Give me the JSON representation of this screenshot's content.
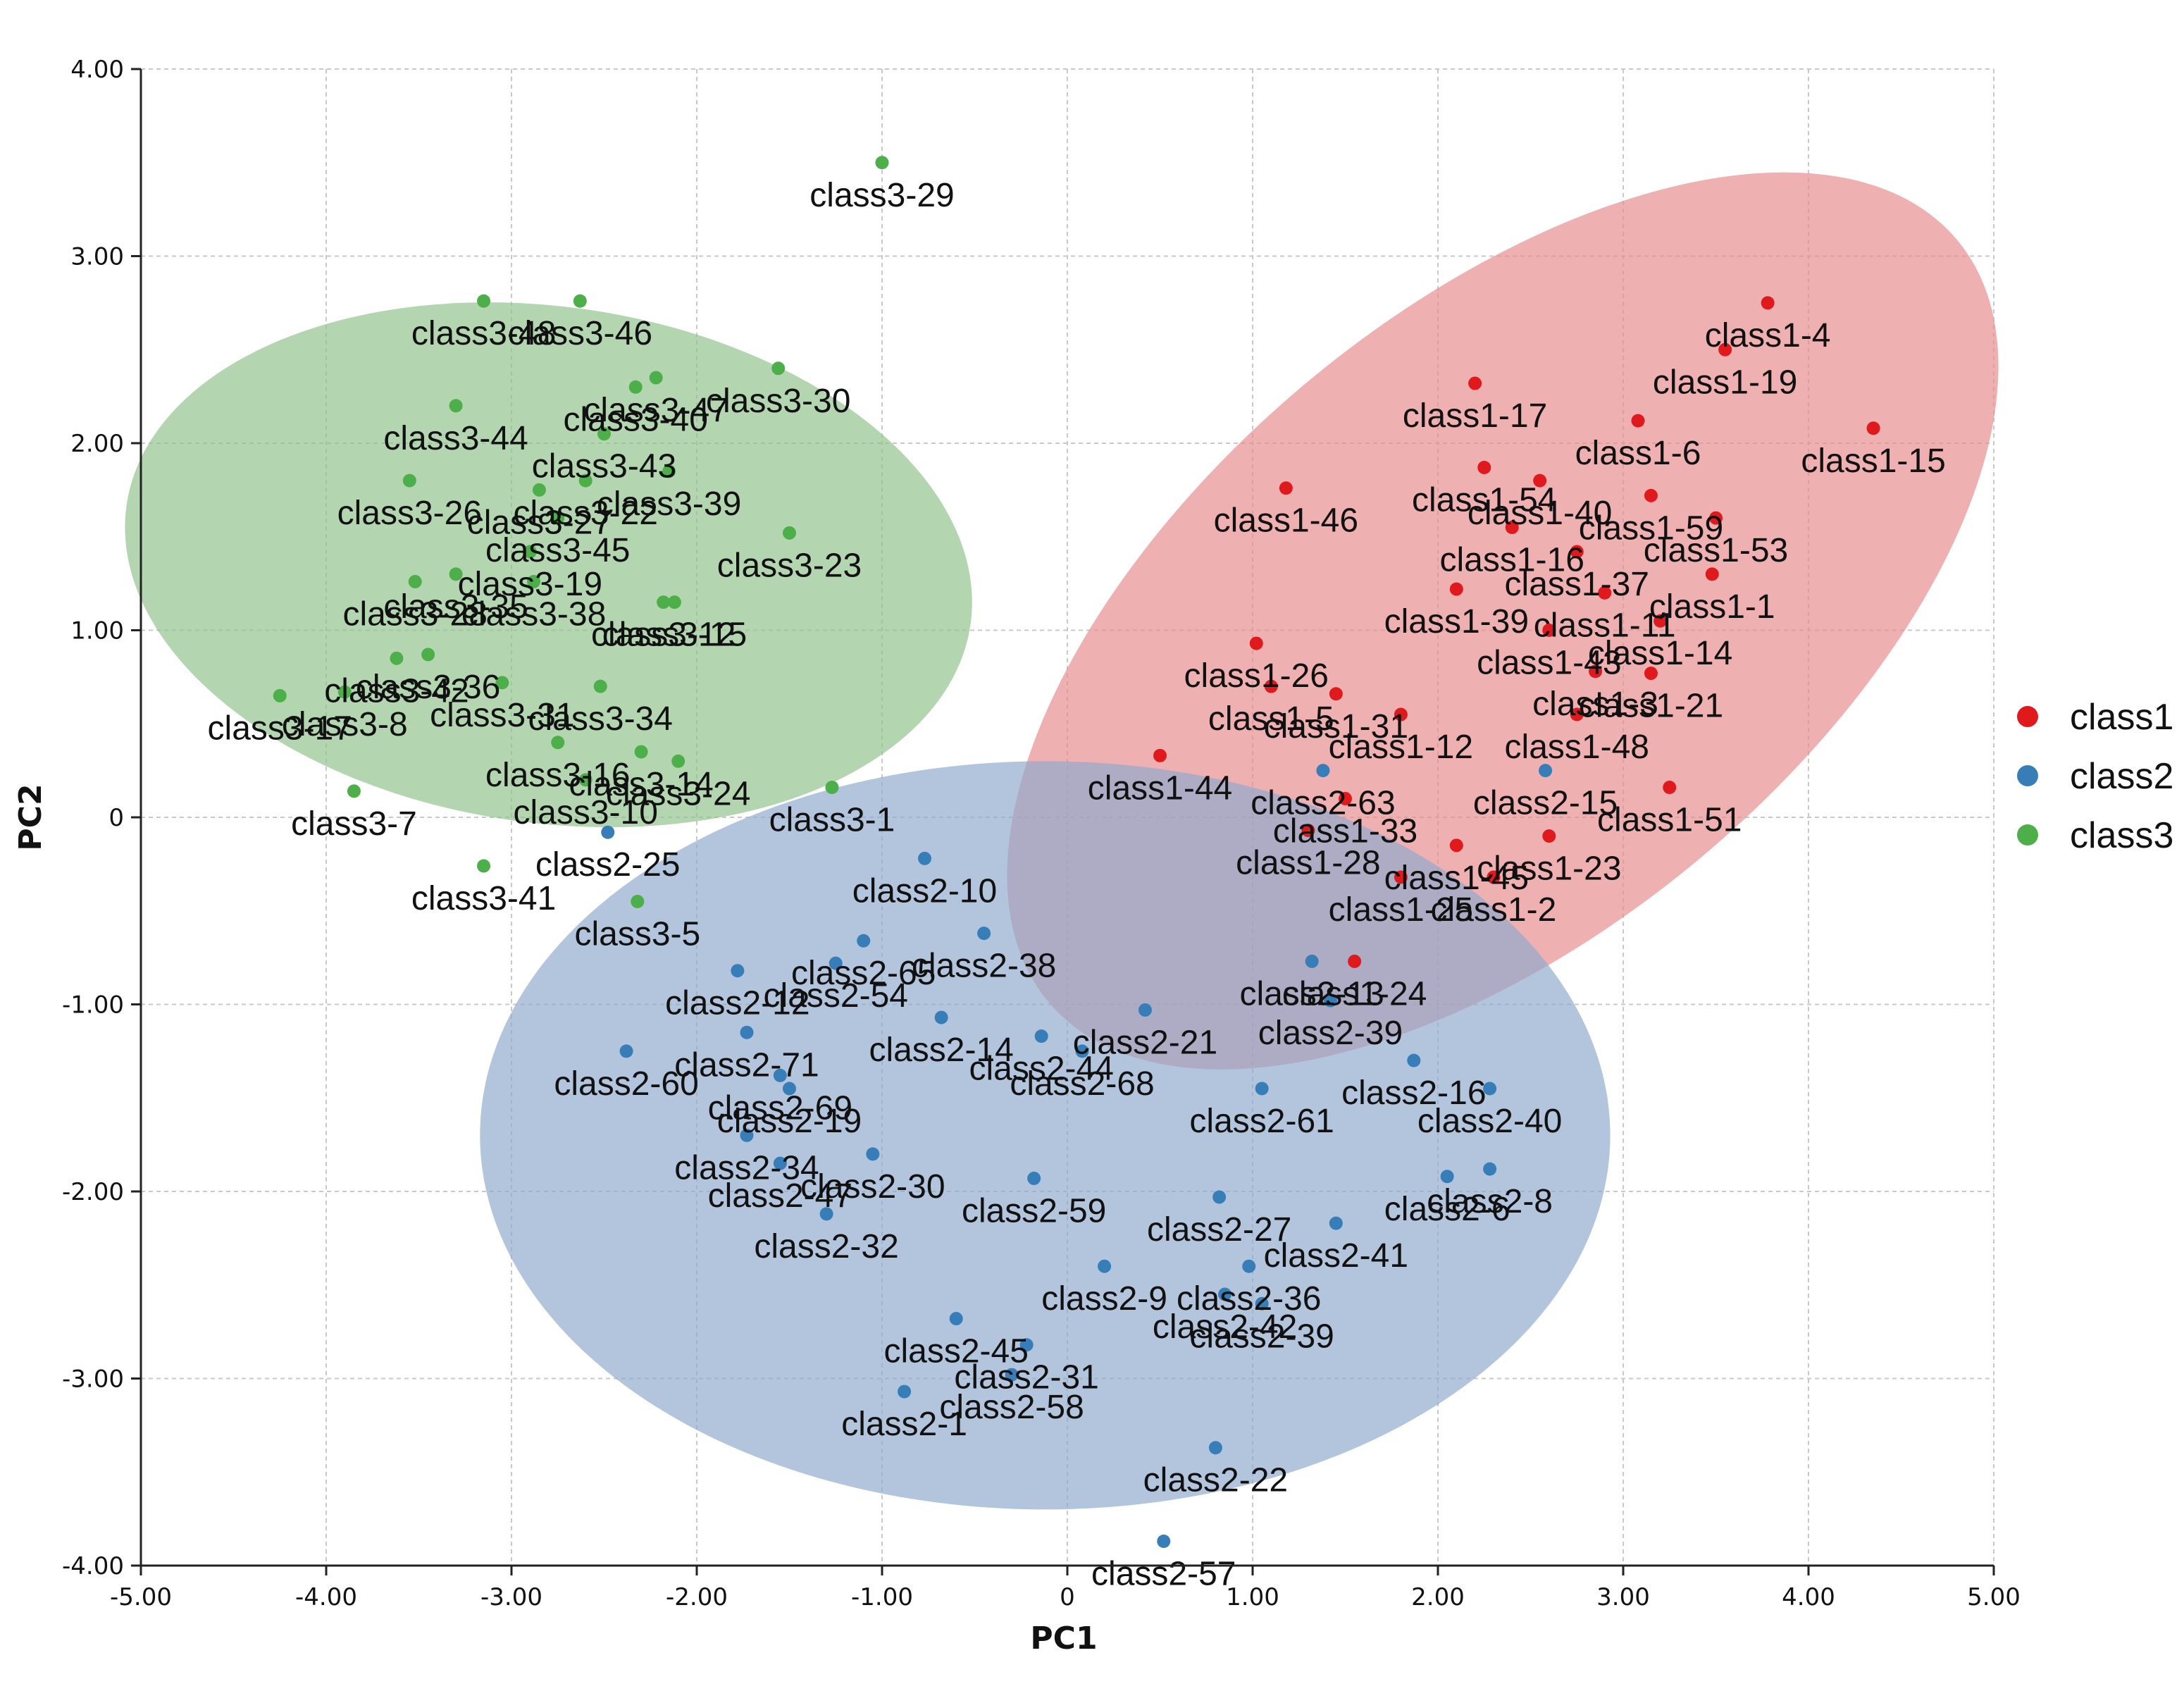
{
  "chart_data": {
    "type": "scatter",
    "xlabel": "PC1",
    "ylabel": "PC2",
    "xlim": [
      -5,
      5
    ],
    "ylim": [
      -4,
      4
    ],
    "x_ticks": [
      "-5.00",
      "-4.00",
      "-3.00",
      "-2.00",
      "-1.00",
      "0",
      "1.00",
      "2.00",
      "3.00",
      "4.00",
      "5.00"
    ],
    "y_ticks": [
      "-4.00",
      "-3.00",
      "-2.00",
      "-1.00",
      "0",
      "1.00",
      "2.00",
      "3.00",
      "4.00"
    ],
    "grid": true,
    "legend_position": "right",
    "series": [
      {
        "name": "class1",
        "color": "#e0191c",
        "ellipse": {
          "cx": 2.35,
          "cy": 1.05,
          "rx": 3.2,
          "ry": 1.65,
          "angle_deg": 40,
          "fill": "#e88a8c"
        },
        "points": [
          {
            "label": "class1-4",
            "x": 3.78,
            "y": 2.75
          },
          {
            "label": "class1-19",
            "x": 3.55,
            "y": 2.5
          },
          {
            "label": "class1-17",
            "x": 2.2,
            "y": 2.32
          },
          {
            "label": "class1-6",
            "x": 3.08,
            "y": 2.12
          },
          {
            "label": "class1-15",
            "x": 4.35,
            "y": 2.08
          },
          {
            "label": "class1-46",
            "x": 1.18,
            "y": 1.76
          },
          {
            "label": "class1-54",
            "x": 2.25,
            "y": 1.87
          },
          {
            "label": "class1-40",
            "x": 2.55,
            "y": 1.8
          },
          {
            "label": "class1-59",
            "x": 3.15,
            "y": 1.72
          },
          {
            "label": "class1-53",
            "x": 3.5,
            "y": 1.6
          },
          {
            "label": "class1-16",
            "x": 2.4,
            "y": 1.55
          },
          {
            "label": "class1-37",
            "x": 2.75,
            "y": 1.42
          },
          {
            "label": "class1-1",
            "x": 3.48,
            "y": 1.3
          },
          {
            "label": "class1-11",
            "x": 2.9,
            "y": 1.2
          },
          {
            "label": "class1-39",
            "x": 2.1,
            "y": 1.22
          },
          {
            "label": "class1-14",
            "x": 3.2,
            "y": 1.05
          },
          {
            "label": "class1-43",
            "x": 2.6,
            "y": 1.0
          },
          {
            "label": "class1-3",
            "x": 2.85,
            "y": 0.78
          },
          {
            "label": "class1-26",
            "x": 1.02,
            "y": 0.93
          },
          {
            "label": "class1-5",
            "x": 1.1,
            "y": 0.7
          },
          {
            "label": "class1-21",
            "x": 3.15,
            "y": 0.77
          },
          {
            "label": "class1-31",
            "x": 1.45,
            "y": 0.66
          },
          {
            "label": "class1-12",
            "x": 1.8,
            "y": 0.55
          },
          {
            "label": "class1-48",
            "x": 2.75,
            "y": 0.55
          },
          {
            "label": "class1-44",
            "x": 0.5,
            "y": 0.33
          },
          {
            "label": "class1-33",
            "x": 1.5,
            "y": 0.1
          },
          {
            "label": "class1-51",
            "x": 3.25,
            "y": 0.16
          },
          {
            "label": "class1-28",
            "x": 1.3,
            "y": -0.07
          },
          {
            "label": "class1-45",
            "x": 2.1,
            "y": -0.15
          },
          {
            "label": "class1-23",
            "x": 2.6,
            "y": -0.1
          },
          {
            "label": "class1-25",
            "x": 1.8,
            "y": -0.32
          },
          {
            "label": "class1-2",
            "x": 2.3,
            "y": -0.32
          },
          {
            "label": "class1-24",
            "x": 1.55,
            "y": -0.77
          }
        ]
      },
      {
        "name": "class2",
        "color": "#377eb8",
        "ellipse": {
          "cx": -0.12,
          "cy": -1.7,
          "rx": 3.05,
          "ry": 2.0,
          "angle_deg": 0,
          "fill": "#8fa8cd"
        },
        "points": [
          {
            "label": "class2-25",
            "x": -2.48,
            "y": -0.08
          },
          {
            "label": "class2-10",
            "x": -0.77,
            "y": -0.22
          },
          {
            "label": "class2-38",
            "x": -0.45,
            "y": -0.62
          },
          {
            "label": "class2-65",
            "x": -1.1,
            "y": -0.66
          },
          {
            "label": "class2-54",
            "x": -1.25,
            "y": -0.78
          },
          {
            "label": "class2-12",
            "x": -1.78,
            "y": -0.82
          },
          {
            "label": "class2-14",
            "x": -0.68,
            "y": -1.07
          },
          {
            "label": "class2-21",
            "x": 0.42,
            "y": -1.03
          },
          {
            "label": "class2-13",
            "x": 1.32,
            "y": -0.77
          },
          {
            "label": "class2-39",
            "x": 1.42,
            "y": -0.98
          },
          {
            "label": "class2-44",
            "x": -0.14,
            "y": -1.17
          },
          {
            "label": "class2-68",
            "x": 0.08,
            "y": -1.25
          },
          {
            "label": "class2-71",
            "x": -1.73,
            "y": -1.15
          },
          {
            "label": "class2-69",
            "x": -1.55,
            "y": -1.38
          },
          {
            "label": "class2-60",
            "x": -2.38,
            "y": -1.25
          },
          {
            "label": "class2-19",
            "x": -1.5,
            "y": -1.45
          },
          {
            "label": "class2-16",
            "x": 1.87,
            "y": -1.3
          },
          {
            "label": "class2-40",
            "x": 2.28,
            "y": -1.45
          },
          {
            "label": "class2-61",
            "x": 1.05,
            "y": -1.45
          },
          {
            "label": "class2-34",
            "x": -1.73,
            "y": -1.7
          },
          {
            "label": "class2-47",
            "x": -1.55,
            "y": -1.85
          },
          {
            "label": "class2-30",
            "x": -1.05,
            "y": -1.8
          },
          {
            "label": "class2-59",
            "x": -0.18,
            "y": -1.93
          },
          {
            "label": "class2-8",
            "x": 2.28,
            "y": -1.88
          },
          {
            "label": "class2-6",
            "x": 2.05,
            "y": -1.92
          },
          {
            "label": "class2-27",
            "x": 0.82,
            "y": -2.03
          },
          {
            "label": "class2-32",
            "x": -1.3,
            "y": -2.12
          },
          {
            "label": "class2-41",
            "x": 1.45,
            "y": -2.17
          },
          {
            "label": "class2-36",
            "x": 0.98,
            "y": -2.4
          },
          {
            "label": "class2-42",
            "x": 0.85,
            "y": -2.55
          },
          {
            "label": "class2-9",
            "x": 0.2,
            "y": -2.4
          },
          {
            "label": "class2-39",
            "x": 1.05,
            "y": -2.6
          },
          {
            "label": "class2-31",
            "x": -0.22,
            "y": -2.82
          },
          {
            "label": "class2-45",
            "x": -0.6,
            "y": -2.68
          },
          {
            "label": "class2-58",
            "x": -0.3,
            "y": -2.98
          },
          {
            "label": "class2-1",
            "x": -0.88,
            "y": -3.07
          },
          {
            "label": "class2-22",
            "x": 0.8,
            "y": -3.37
          },
          {
            "label": "class2-57",
            "x": 0.52,
            "y": -3.87
          },
          {
            "label": "class2-63",
            "x": 1.38,
            "y": 0.25
          },
          {
            "label": "class2-15",
            "x": 2.58,
            "y": 0.25
          }
        ]
      },
      {
        "name": "class3",
        "color": "#4daf4a",
        "ellipse": {
          "cx": -2.8,
          "cy": 1.35,
          "rx": 2.3,
          "ry": 1.38,
          "angle_deg": -8,
          "fill": "#8fc38c"
        },
        "points": [
          {
            "label": "class3-29",
            "x": -1.0,
            "y": 3.5
          },
          {
            "label": "class3-48",
            "x": -3.15,
            "y": 2.76
          },
          {
            "label": "class3-46",
            "x": -2.63,
            "y": 2.76
          },
          {
            "label": "class3-40",
            "x": -2.33,
            "y": 2.3
          },
          {
            "label": "class3-30",
            "x": -1.56,
            "y": 2.4
          },
          {
            "label": "class3-47",
            "x": -2.22,
            "y": 2.35
          },
          {
            "label": "class3-44",
            "x": -3.3,
            "y": 2.2
          },
          {
            "label": "class3-43",
            "x": -2.5,
            "y": 2.05
          },
          {
            "label": "class3-39",
            "x": -2.15,
            "y": 1.85
          },
          {
            "label": "class3-22",
            "x": -2.6,
            "y": 1.8
          },
          {
            "label": "class3-26",
            "x": -3.55,
            "y": 1.8
          },
          {
            "label": "class3-27",
            "x": -2.85,
            "y": 1.75
          },
          {
            "label": "class3-45",
            "x": -2.75,
            "y": 1.6
          },
          {
            "label": "class3-23",
            "x": -1.5,
            "y": 1.52
          },
          {
            "label": "class3-19",
            "x": -2.9,
            "y": 1.42
          },
          {
            "label": "class3-35",
            "x": -3.3,
            "y": 1.3
          },
          {
            "label": "class3-28",
            "x": -3.52,
            "y": 1.26
          },
          {
            "label": "class3-38",
            "x": -2.88,
            "y": 1.26
          },
          {
            "label": "class3-12",
            "x": -2.18,
            "y": 1.15
          },
          {
            "label": "class3-15",
            "x": -2.12,
            "y": 1.15
          },
          {
            "label": "class3-36",
            "x": -3.45,
            "y": 0.87
          },
          {
            "label": "class3-42",
            "x": -3.62,
            "y": 0.85
          },
          {
            "label": "class3-31",
            "x": -3.05,
            "y": 0.72
          },
          {
            "label": "class3-34",
            "x": -2.52,
            "y": 0.7
          },
          {
            "label": "class3-17",
            "x": -4.25,
            "y": 0.65
          },
          {
            "label": "class3-8",
            "x": -3.9,
            "y": 0.67
          },
          {
            "label": "class3-16",
            "x": -2.75,
            "y": 0.4
          },
          {
            "label": "class3-14",
            "x": -2.3,
            "y": 0.35
          },
          {
            "label": "class3-24",
            "x": -2.1,
            "y": 0.3
          },
          {
            "label": "class3-10",
            "x": -2.6,
            "y": 0.2
          },
          {
            "label": "class3-7",
            "x": -3.85,
            "y": 0.14
          },
          {
            "label": "class3-1",
            "x": -1.27,
            "y": 0.16
          },
          {
            "label": "class3-41",
            "x": -3.15,
            "y": -0.26
          },
          {
            "label": "class3-5",
            "x": -2.32,
            "y": -0.45
          }
        ]
      }
    ]
  }
}
